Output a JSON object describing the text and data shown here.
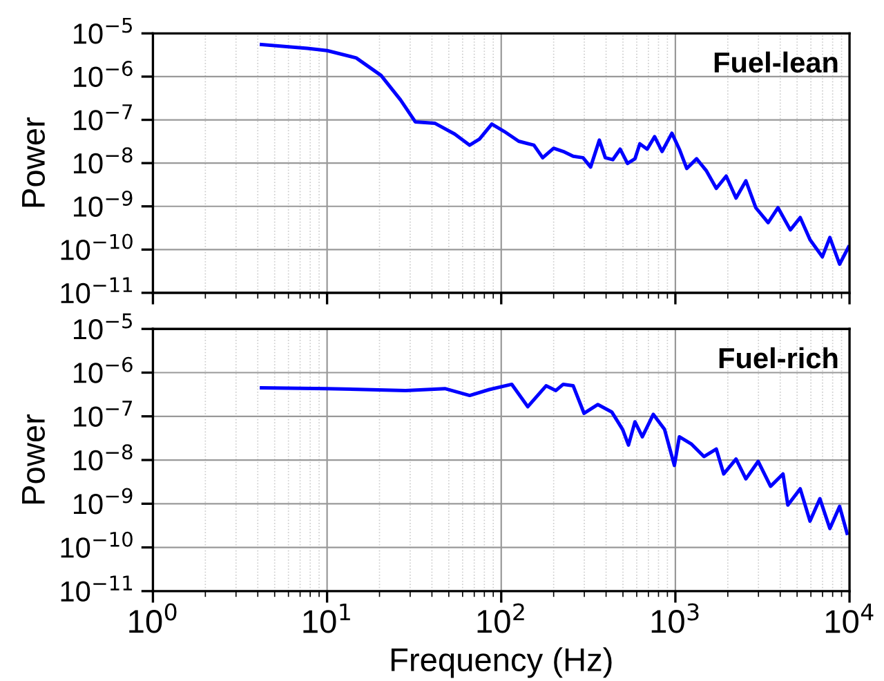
{
  "chart_data": [
    {
      "type": "line",
      "title": "Fuel-lean",
      "ylabel": "Power",
      "log": "xy",
      "grid": true,
      "tick_labels": "y",
      "marker": "none",
      "line_style": "solid",
      "x": [
        4.2,
        7.7,
        10,
        14.7,
        20.4,
        26.4,
        32.1,
        41.7,
        54,
        65.9,
        75,
        88.3,
        104,
        126,
        154,
        173,
        200,
        227,
        259,
        295,
        326,
        366,
        396,
        437,
        482,
        531,
        586,
        625,
        689,
        760,
        839,
        955,
        1054,
        1162,
        1324,
        1508,
        1718,
        1958,
        2230,
        2540,
        2895,
        3410,
        3885,
        4573,
        5210,
        5930,
        6980,
        7710,
        8770,
        9870
      ],
      "series": [
        {
          "color": "#0000ff",
          "values": [
            5.5e-06,
            4.5e-06,
            4e-06,
            2.7e-06,
            1.07e-06,
            2.9e-07,
            9e-08,
            8.3e-08,
            4.7e-08,
            2.6e-08,
            3.6e-08,
            8e-08,
            5.4e-08,
            3.2e-08,
            2.6e-08,
            1.33e-08,
            2.2e-08,
            1.86e-08,
            1.44e-08,
            1.33e-08,
            8.1e-09,
            3.4e-08,
            1.33e-08,
            1.2e-08,
            2.1e-08,
            9.8e-09,
            1.26e-08,
            2.8e-08,
            2.1e-08,
            4.1e-08,
            1.86e-08,
            4.9e-08,
            2.1e-08,
            7.5e-09,
            1.26e-08,
            6.6e-09,
            2.6e-09,
            5e-09,
            1.55e-09,
            3.9e-09,
            9.3e-10,
            4.2e-10,
            9.3e-10,
            2.85e-10,
            5.5e-10,
            1.7e-10,
            6.8e-11,
            1.9e-10,
            4.6e-11,
            1.15e-10
          ]
        }
      ],
      "xlim": [
        1,
        10000
      ],
      "xticks": [
        {
          "value": 1,
          "label": null
        },
        {
          "value": 10,
          "label": null
        },
        {
          "value": 100,
          "label": null
        },
        {
          "value": 1000,
          "label": null
        },
        {
          "value": 10000,
          "label": null
        }
      ],
      "ylim": [
        1e-11,
        1e-05
      ],
      "yticks": [
        {
          "value": 1e-11,
          "label": "10$^{−11}$"
        },
        {
          "value": 1e-10,
          "label": "10$^{−10}$"
        },
        {
          "value": 1e-09,
          "label": "10$^{−9}$"
        },
        {
          "value": 1e-08,
          "label": "10$^{−8}$"
        },
        {
          "value": 1e-07,
          "label": "10$^{−7}$"
        },
        {
          "value": 1e-06,
          "label": "10$^{−6}$"
        },
        {
          "value": 1e-05,
          "label": "10$^{−5}$"
        }
      ]
    },
    {
      "type": "line",
      "title": "Fuel-rich",
      "xlabel": "Frequency (Hz)",
      "ylabel": "Power",
      "log": "xy",
      "grid": true,
      "marker": "none",
      "line_style": "solid",
      "x": [
        4.2,
        10,
        28.2,
        47.5,
        65.9,
        85.5,
        115,
        142,
        181,
        206,
        227,
        259,
        299,
        359,
        431,
        498,
        538,
        586,
        646,
        747,
        867,
        987,
        1054,
        1240,
        1459,
        1718,
        1895,
        2230,
        2540,
        2990,
        3520,
        4150,
        4425,
        5210,
        5930,
        6760,
        7710,
        8770,
        9680
      ],
      "series": [
        {
          "color": "#0000ff",
          "values": [
            4.5e-07,
            4.3e-07,
            3.9e-07,
            4.3e-07,
            3e-07,
            4.1e-07,
            5.4e-07,
            1.66e-07,
            5e-07,
            3.9e-07,
            5.4e-07,
            5e-07,
            1.17e-07,
            1.86e-07,
            1.26e-07,
            5e-08,
            2.2e-08,
            7.5e-08,
            3.4e-08,
            1.11e-07,
            5e-08,
            7.5e-09,
            3.4e-08,
            2.3e-08,
            1.2e-08,
            1.78e-08,
            4.8e-09,
            1.05e-08,
            3.7e-09,
            9.3e-09,
            2.5e-09,
            4.8e-09,
            9.3e-10,
            2.2e-09,
            4e-10,
            1.3e-09,
            2.7e-10,
            8.7e-10,
            2.1e-10
          ]
        }
      ],
      "xlim": [
        1,
        10000
      ],
      "xticks": [
        {
          "value": 1,
          "label": "10$^{0}$"
        },
        {
          "value": 10,
          "label": "10$^{1}$"
        },
        {
          "value": 100,
          "label": "10$^{2}$"
        },
        {
          "value": 1000,
          "label": "10$^{3}$"
        },
        {
          "value": 10000,
          "label": "10$^{4}$"
        }
      ],
      "ylim": [
        1e-11,
        1e-05
      ],
      "yticks": [
        {
          "value": 1e-11,
          "label": "10$^{−11}$"
        },
        {
          "value": 1e-10,
          "label": "10$^{−10}$"
        },
        {
          "value": 1e-09,
          "label": "10$^{−9}$"
        },
        {
          "value": 1e-08,
          "label": "10$^{−8}$"
        },
        {
          "value": 1e-07,
          "label": "10$^{−7}$"
        },
        {
          "value": 1e-06,
          "label": "10$^{−6}$"
        },
        {
          "value": 1e-05,
          "label": "10$^{−5}$"
        }
      ]
    }
  ]
}
